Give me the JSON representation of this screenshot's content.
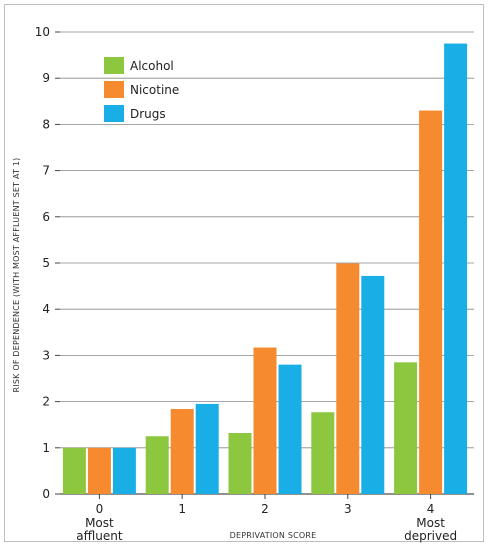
{
  "chart_data": {
    "type": "bar",
    "categories": [
      "0",
      "1",
      "2",
      "3",
      "4"
    ],
    "category_sublabels": [
      "Most\naffluent",
      "",
      "",
      "",
      "Most\ndeprived"
    ],
    "series": [
      {
        "name": "Alcohol",
        "color": "#8dc63f",
        "values": [
          1.0,
          1.25,
          1.32,
          1.77,
          2.85
        ]
      },
      {
        "name": "Nicotine",
        "color": "#f58a2e",
        "values": [
          1.0,
          1.84,
          3.17,
          4.99,
          8.3
        ]
      },
      {
        "name": "Drugs",
        "color": "#1aaee6",
        "values": [
          1.0,
          1.95,
          2.8,
          4.72,
          9.75
        ]
      }
    ],
    "xlabel": "DEPRIVATION SCORE",
    "ylabel": "RISK OF DEPENDENCE (WITH MOST AFFLUENT SET AT 1)",
    "ylim": [
      0,
      10
    ],
    "yticks": [
      "0",
      "1",
      "2",
      "3",
      "4",
      "5",
      "6",
      "7",
      "8",
      "9",
      "10"
    ],
    "grid": true,
    "legend_position": "top-left"
  }
}
